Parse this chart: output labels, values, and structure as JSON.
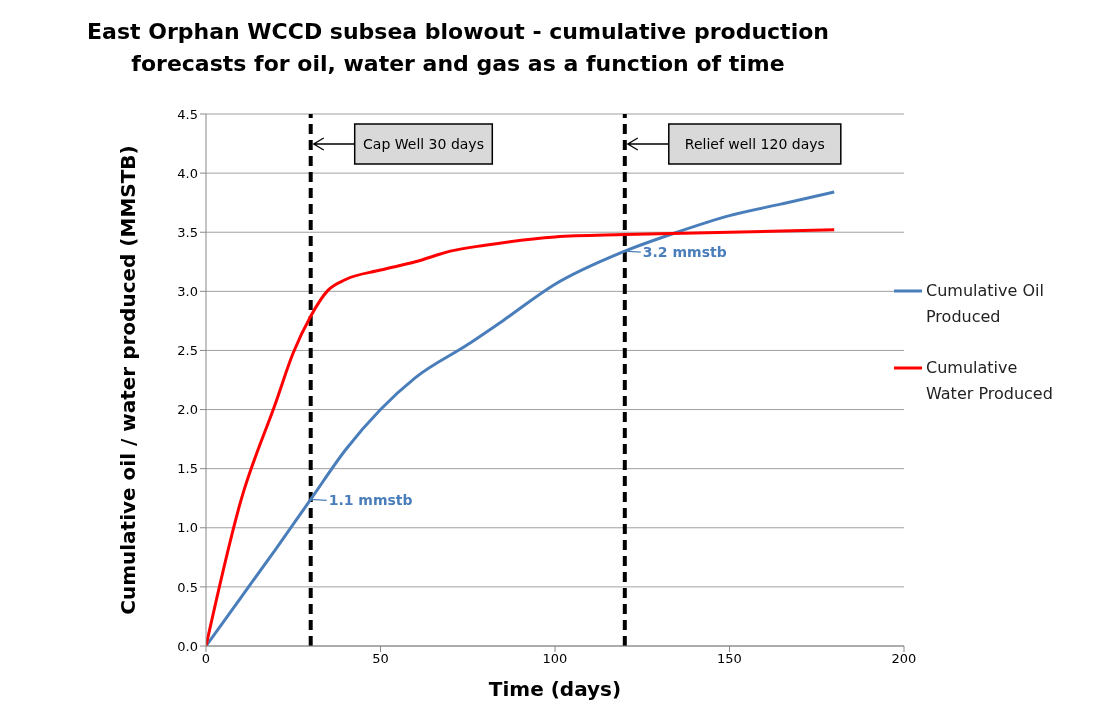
{
  "chart_data": {
    "type": "line",
    "title": "East Orphan WCCD subsea blowout - cumulative production forecasts for  oil, water and gas as a function of time",
    "xlabel": "Time (days)",
    "ylabel": "Cumulative oil / water  produced (MMSTB)",
    "xlim": [
      0,
      200
    ],
    "xticks": [
      0,
      50,
      100,
      150,
      200
    ],
    "ylim": [
      0,
      4.5
    ],
    "yticks": [
      {
        "value": 0,
        "label": "0.0"
      },
      0.5,
      {
        "value": 1,
        "label": "1.0"
      },
      1.5,
      {
        "value": 2,
        "label": "2.0"
      },
      2.5,
      {
        "value": 3,
        "label": "3.0"
      },
      3.5,
      {
        "value": 4,
        "label": "4.0"
      },
      4.5
    ],
    "grid": "y",
    "legend": "right",
    "marker": "none",
    "line_style": "solid",
    "series": [
      {
        "name": "Cumulative Oil Produced",
        "color": "#4a7ebb",
        "x": [
          0,
          10,
          20,
          30,
          40,
          50,
          60,
          75,
          85,
          100,
          120,
          135,
          150,
          165,
          180
        ],
        "values": [
          0,
          0.41,
          0.82,
          1.24,
          1.66,
          2.0,
          2.27,
          2.55,
          2.75,
          3.06,
          3.34,
          3.5,
          3.64,
          3.74,
          3.84
        ]
      },
      {
        "name": "Cumulative Water Produced",
        "color": "#ff0000",
        "x": [
          0,
          10,
          20,
          25,
          30,
          35,
          40,
          50,
          60,
          70,
          80,
          100,
          120,
          150,
          180
        ],
        "values": [
          0,
          1.23,
          2.06,
          2.48,
          2.79,
          3.01,
          3.1,
          3.18,
          3.25,
          3.34,
          3.39,
          3.46,
          3.48,
          3.5,
          3.52
        ]
      }
    ],
    "ref_lines": [
      {
        "axis": "x",
        "value": 30,
        "label": "Cap Well 30 days",
        "color": "#000000",
        "line_style": "dashed"
      },
      {
        "axis": "x",
        "value": 120,
        "label": "Relief well 120 days",
        "color": "#000000",
        "line_style": "dashed"
      }
    ],
    "annotations": [
      {
        "text": "1.1 mmstb",
        "x": 30,
        "y": 1.24
      },
      {
        "text": "3.2 mmstb",
        "x": 120,
        "y": 3.34
      }
    ]
  }
}
